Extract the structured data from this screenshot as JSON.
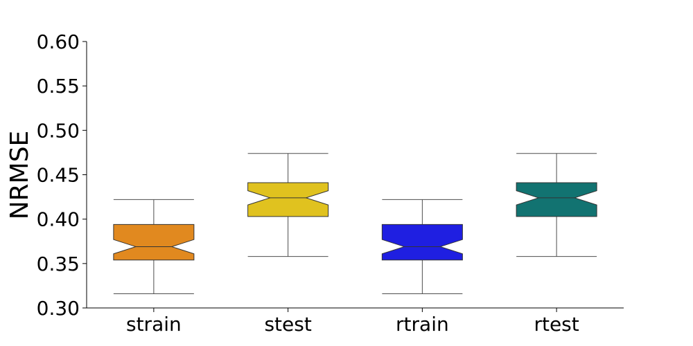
{
  "chart_data": {
    "type": "box",
    "title": "",
    "xlabel": "",
    "ylabel": "NRMSE",
    "ylim": [
      0.3,
      0.6
    ],
    "yticks": [
      "0.30",
      "0.35",
      "0.40",
      "0.45",
      "0.50",
      "0.55",
      "0.60"
    ],
    "grid": false,
    "notched": true,
    "categories": [
      "strain",
      "stest",
      "rtrain",
      "rtest"
    ],
    "boxes": [
      {
        "category": "strain",
        "whisker_low": 0.316,
        "q1": 0.354,
        "median": 0.369,
        "q3": 0.394,
        "whisker_high": 0.422,
        "notch_low": 0.361,
        "notch_high": 0.377,
        "color": "#E1891F"
      },
      {
        "category": "stest",
        "whisker_low": 0.358,
        "q1": 0.403,
        "median": 0.424,
        "q3": 0.441,
        "whisker_high": 0.474,
        "notch_low": 0.416,
        "notch_high": 0.432,
        "color": "#E0C21F"
      },
      {
        "category": "rtrain",
        "whisker_low": 0.316,
        "q1": 0.354,
        "median": 0.369,
        "q3": 0.394,
        "whisker_high": 0.422,
        "notch_low": 0.361,
        "notch_high": 0.377,
        "color": "#1F1FE1"
      },
      {
        "category": "rtest",
        "whisker_low": 0.358,
        "q1": 0.403,
        "median": 0.424,
        "q3": 0.441,
        "whisker_high": 0.474,
        "notch_low": 0.416,
        "notch_high": 0.432,
        "color": "#127371"
      }
    ]
  }
}
